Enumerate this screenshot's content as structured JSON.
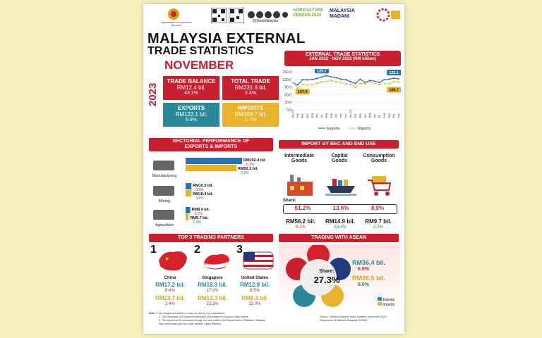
{
  "header": {
    "dept_text": "DEPARTMENT OF STATISTICS MALAYSIA",
    "handle": "@StatsMalaysia",
    "census_logo": "AGRICULTURE CENSUS 2024",
    "madani_logo": "MALAYSIA MADANI"
  },
  "title": {
    "line1": "MALAYSIA EXTERNAL",
    "line2": "TRADE STATISTICS",
    "month": "NOVEMBER",
    "year": "2023"
  },
  "kpis": {
    "trade_balance": {
      "label": "TRADE BALANCE",
      "value": "RM12.4 bil.",
      "change": "43.1%",
      "color": "#c8202e"
    },
    "total_trade": {
      "label": "TOTAL TRADE",
      "value": "RM231.8 bil.",
      "change": "2.4%",
      "color": "#c8202e"
    },
    "exports": {
      "label": "EXPORTS",
      "value": "RM122.1 bil.",
      "change": "5.9%",
      "color": "#2a8a9a"
    },
    "imports": {
      "label": "IMPORTS",
      "value": "RM109.7 bil.",
      "change": "1.7%",
      "color": "#e8b32a"
    }
  },
  "trend": {
    "title_line1": "EXTERNAL TRADE STATISTICS",
    "title_line2": "JAN 2022 - NOV 2023 (RM billion)",
    "legend_exports": "Exports",
    "legend_imports": "Imports",
    "callouts": {
      "exports_peak": "129.7",
      "exports_last": "122.1",
      "imports_first": "107.9",
      "imports_last": "109.7"
    }
  },
  "chart_data": {
    "type": "line",
    "title": "EXTERNAL TRADE STATISTICS JAN 2022 - NOV 2023 (RM billion)",
    "x": [
      "Jan-22",
      "Feb",
      "Mar",
      "Apr",
      "May",
      "Jun",
      "Jul",
      "Aug",
      "Sep",
      "Oct",
      "Nov",
      "Dec",
      "Jan-23",
      "Feb",
      "Mar",
      "Apr",
      "May",
      "Jun",
      "Jul",
      "Aug",
      "Sep",
      "Oct",
      "Nov"
    ],
    "yticks": [
      "150.0",
      "120.0",
      "90.0",
      "60.0",
      "30.0",
      "0.0"
    ],
    "ylim": [
      0,
      150
    ],
    "series": [
      {
        "name": "Exports",
        "color": "#2a6fb0",
        "values": [
          107,
          98,
          119,
          118,
          120,
          124,
          129.7,
          135,
          130,
          127,
          121,
          119,
          111,
          104,
          121,
          108,
          116,
          113,
          108,
          119,
          121,
          125,
          122.1
        ]
      },
      {
        "name": "Imports",
        "color": "#e8b32a",
        "values": [
          107.9,
          84,
          100,
          98,
          98,
          105,
          110,
          112,
          115,
          110,
          108,
          101,
          101,
          89,
          106,
          102,
          109,
          104,
          100,
          104,
          103,
          112,
          109.7
        ]
      }
    ],
    "grid": true,
    "legend": "bottom"
  },
  "sectoral": {
    "title_line1": "SECTORIAL PERFORMANCE OF",
    "title_line2": "EXPORTS & IMPORTS",
    "rows": [
      {
        "name": "Manufacturing",
        "exp": "RM102.4 bil.",
        "exp_chg": "6.7%",
        "imp": "RM92.2 bil.",
        "imp_chg": "2.2%",
        "exp_val": 102.4,
        "imp_val": 92.2
      },
      {
        "name": "Mining",
        "exp": "RM10.5 bil.",
        "exp_chg": "0.5%",
        "imp": "RM10.4 bil.",
        "imp_chg": "3.8%",
        "exp_val": 10.5,
        "imp_val": 10.4
      },
      {
        "name": "Agriculture",
        "exp": "RM8.4 bil.",
        "exp_chg": "0.5%",
        "imp": "RM5.7 bil.",
        "imp_chg": "1.9%",
        "exp_val": 8.4,
        "imp_val": 5.7
      }
    ]
  },
  "bec": {
    "title": "IMPORT BY BEC AND END USE",
    "share_label": "Share:",
    "items": [
      {
        "name_line1": "Intermediate",
        "name_line2": "Goods",
        "share": "51.2%",
        "value": "RM56.2 bil.",
        "chg": "5.2%"
      },
      {
        "name_line1": "Capital",
        "name_line2": "Goods",
        "share": "13.6%",
        "value": "RM14.9 bil.",
        "chg": "53.3%"
      },
      {
        "name_line1": "Consumption",
        "name_line2": "Goods",
        "share": "8.9%",
        "value": "RM9.7 bil.",
        "chg": "2.2%"
      }
    ]
  },
  "partners": {
    "title": "TOP 3 TRADING PARTNERS",
    "items": [
      {
        "rank": "1",
        "country": "China",
        "exp": "RM17.2 bil.",
        "exp_chg": "8.4%",
        "imp": "RM23.7 bil.",
        "imp_chg": "2.4%"
      },
      {
        "rank": "2",
        "country": "Singapore",
        "exp": "RM18.3 bil.",
        "exp_chg": "17.0%",
        "imp": "RM13.3 bil.",
        "imp_chg": "22.2%"
      },
      {
        "rank": "3",
        "country": "United States",
        "exp": "RM12.9 bil.",
        "exp_chg": "8.5%",
        "imp": "RM8.3 bil.",
        "imp_chg": "12.0%"
      }
    ]
  },
  "asean": {
    "title": "TRADING WITH ASEAN",
    "share_label": "Share:",
    "share": "27.3%",
    "exp": "RM36.4 bil.",
    "exp_chg": "6.8%",
    "imp": "RM26.5 bil.",
    "imp_chg": "6.0%",
    "legend_exports": "Exports",
    "legend_imports": "Imports"
  },
  "footer": {
    "note_label": "Note:",
    "note1": "1. All changes are based on year-on-year (y-o-y) comparison",
    "note2": "2. The November 2023 data is preliminary and subject to revision in later issues",
    "note3": "3. This report can be accessed through the web portal of the Department of Statistics, Malaysia",
    "note3b": "http://www.dosm.gov.my/ under section: Latest Release",
    "source": "Source : Monthly External Trade Statistics, November 2023,",
    "source2": "Department of Statistics Malaysia (DOSM)"
  }
}
